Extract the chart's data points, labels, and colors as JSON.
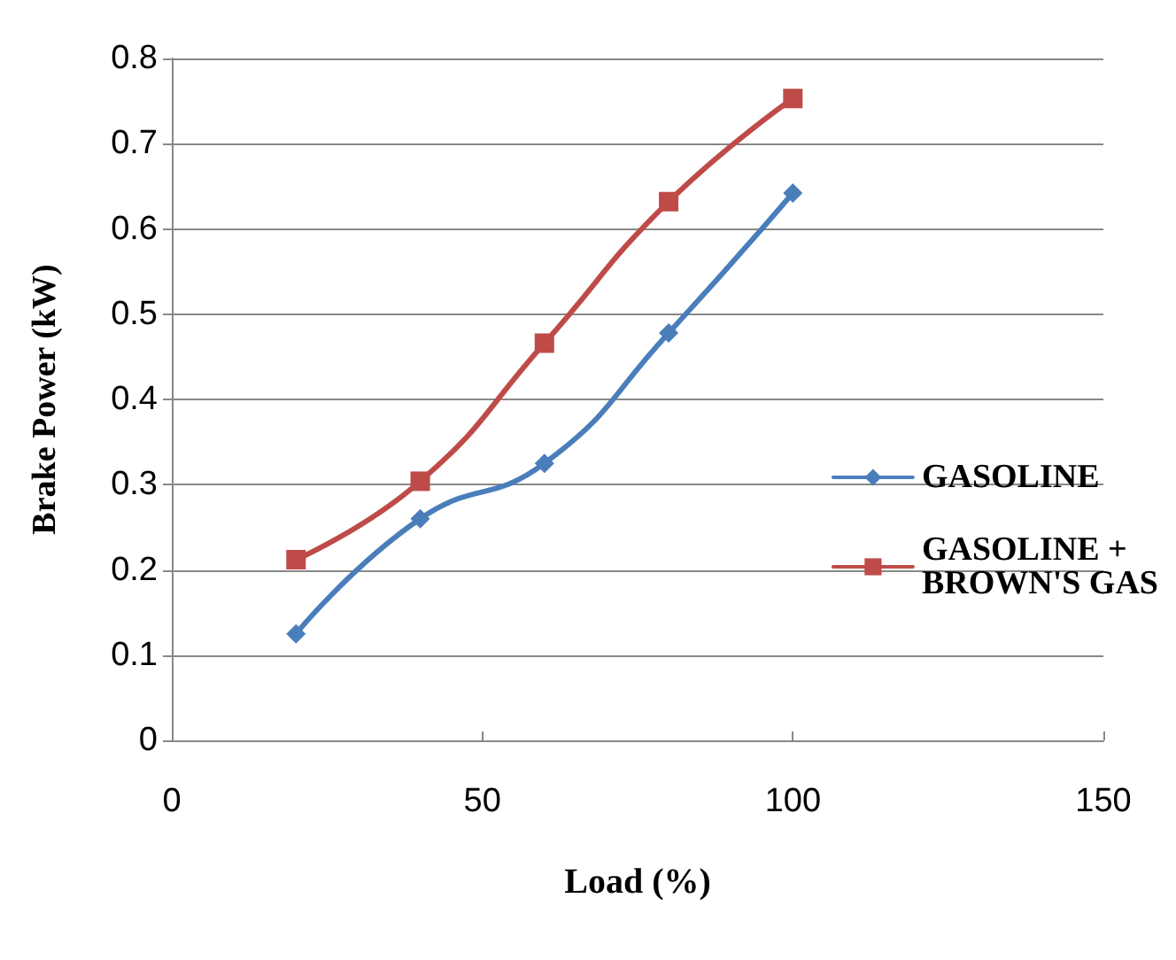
{
  "chart_data": {
    "type": "line",
    "xlabel": "Load (%)",
    "ylabel": "Brake Power (kW)",
    "x": [
      20,
      40,
      60,
      80,
      100
    ],
    "series": [
      {
        "name": "GASOLINE",
        "color": "#4a7ebb",
        "marker": "diamond",
        "values": [
          0.125,
          0.26,
          0.325,
          0.478,
          0.642
        ]
      },
      {
        "name": "GASOLINE + BROWN'S GAS",
        "color": "#be4b48",
        "marker": "square",
        "values": [
          0.212,
          0.304,
          0.466,
          0.632,
          0.753
        ]
      }
    ],
    "xlim": [
      0,
      150
    ],
    "xticks": [
      0,
      50,
      100,
      150
    ],
    "ylim": [
      0,
      0.8
    ],
    "yticks": [
      0,
      0.1,
      0.2,
      0.3,
      0.4,
      0.5,
      0.6,
      0.7,
      0.8
    ],
    "grid": "y",
    "legend": "right"
  }
}
